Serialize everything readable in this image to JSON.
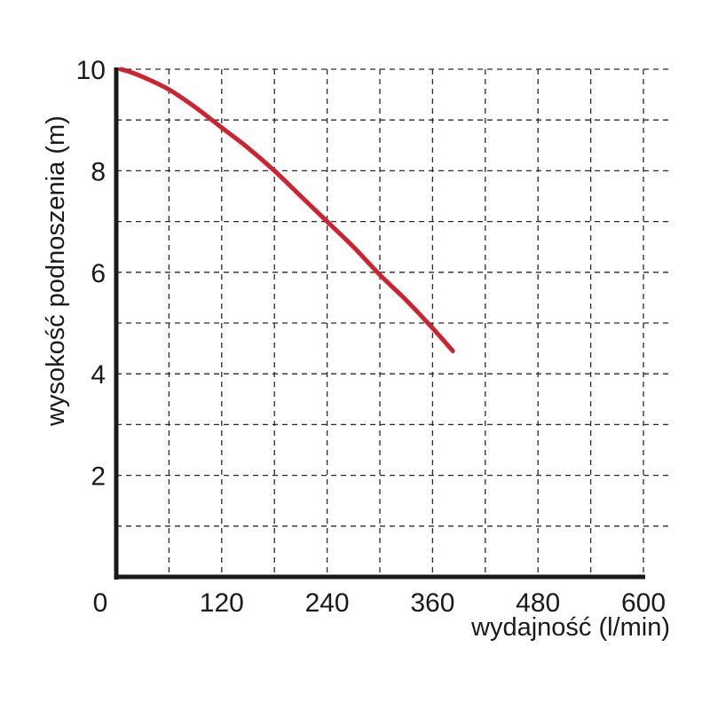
{
  "chart_data": {
    "type": "line",
    "xlabel": "wydajność (l/min)",
    "ylabel": "wysokość podnoszenia (m)",
    "xlim": [
      0,
      600
    ],
    "ylim": [
      0,
      10
    ],
    "x_ticks": [
      "0",
      "120",
      "240",
      "360",
      "480",
      "600"
    ],
    "y_ticks": [
      "2",
      "4",
      "6",
      "8",
      "10"
    ],
    "grid": true,
    "series": [
      {
        "color": "#d0212f",
        "x": [
          5,
          15,
          30,
          60,
          90,
          120,
          150,
          180,
          210,
          240,
          270,
          300,
          330,
          360,
          383
        ],
        "y": [
          10.0,
          9.95,
          9.85,
          9.6,
          9.25,
          8.85,
          8.45,
          8.0,
          7.5,
          7.0,
          6.5,
          5.95,
          5.45,
          4.9,
          4.45
        ]
      }
    ]
  }
}
